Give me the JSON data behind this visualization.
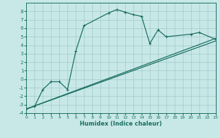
{
  "xlabel": "Humidex (Indice chaleur)",
  "bg_color": "#c8e8e8",
  "grid_color": "#a0c8c8",
  "line_color": "#1a6e60",
  "xlim": [
    0,
    23
  ],
  "ylim": [
    -4,
    9
  ],
  "xticks": [
    0,
    1,
    2,
    3,
    4,
    5,
    6,
    7,
    8,
    9,
    10,
    11,
    12,
    13,
    14,
    15,
    16,
    17,
    18,
    19,
    20,
    21,
    22,
    23
  ],
  "yticks": [
    -4,
    -3,
    -2,
    -1,
    0,
    1,
    2,
    3,
    4,
    5,
    6,
    7,
    8
  ],
  "main_x": [
    0,
    1,
    2,
    3,
    4,
    5,
    6,
    7,
    10,
    11,
    12,
    13,
    14,
    15,
    16,
    17,
    20,
    21,
    23
  ],
  "main_y": [
    -3.5,
    -3.2,
    -1.2,
    -0.3,
    -0.3,
    -1.2,
    3.3,
    6.3,
    7.8,
    8.2,
    7.9,
    7.6,
    7.4,
    4.2,
    5.8,
    5.0,
    5.3,
    5.5,
    4.7
  ],
  "trend1_x": [
    0,
    23
  ],
  "trend1_y": [
    -3.5,
    4.8
  ],
  "trend2_x": [
    0,
    23
  ],
  "trend2_y": [
    -3.5,
    4.5
  ]
}
